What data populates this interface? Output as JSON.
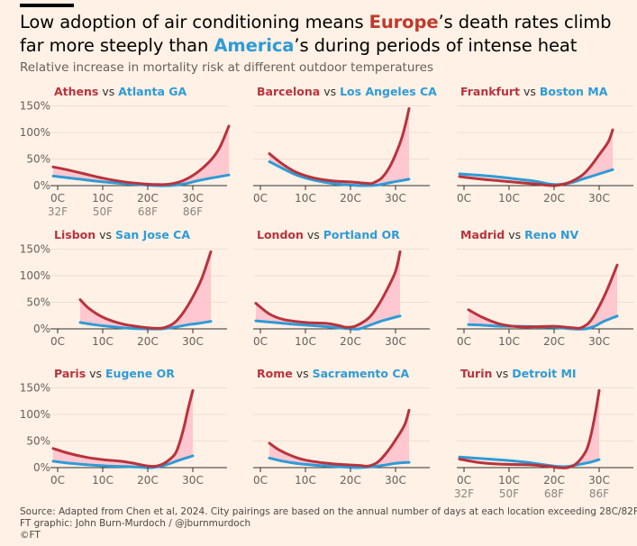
{
  "header": {
    "title_part1": "Low adoption of air conditioning means ",
    "title_eu": "Europe",
    "title_part2": "’s death rates climb",
    "title_part3": "far more steeply than ",
    "title_us": "America",
    "title_part4": "’s during periods of intense heat",
    "subtitle": "Relative increase in mortality risk at different outdoor temperatures"
  },
  "colors": {
    "europe": "#b8333d",
    "america": "#2e9bd6",
    "fill": "#ffc2cc",
    "background": "#fff1e5",
    "axis": "#33302e"
  },
  "axis": {
    "y_ticks": [
      "0%",
      "50%",
      "100%",
      "150%"
    ],
    "y_values": [
      0,
      50,
      100,
      150
    ],
    "x_ticks_c": [
      "0C",
      "10C",
      "20C",
      "30C"
    ],
    "x_ticks_f": [
      "32F",
      "50F",
      "68F",
      "86F"
    ],
    "x_values": [
      0,
      10,
      20,
      30
    ]
  },
  "chart_data": {
    "type": "line",
    "xlabel": "",
    "ylabel": "",
    "x_unit": "°C",
    "y_unit": "%",
    "xlim": [
      -1,
      38
    ],
    "ylim": [
      0,
      150
    ],
    "panels": [
      {
        "eu_city": "Athens",
        "us_city": "Atlanta GA",
        "europe": [
          [
            -1,
            35
          ],
          [
            2,
            30
          ],
          [
            6,
            22
          ],
          [
            10,
            14
          ],
          [
            14,
            8
          ],
          [
            18,
            4
          ],
          [
            22,
            2
          ],
          [
            25,
            3
          ],
          [
            28,
            10
          ],
          [
            31,
            25
          ],
          [
            34,
            48
          ],
          [
            36,
            72
          ],
          [
            38,
            112
          ]
        ],
        "america": [
          [
            -1,
            18
          ],
          [
            3,
            14
          ],
          [
            8,
            9
          ],
          [
            13,
            5
          ],
          [
            18,
            2
          ],
          [
            22,
            0
          ],
          [
            25,
            0
          ],
          [
            28,
            3
          ],
          [
            31,
            9
          ],
          [
            34,
            14
          ],
          [
            38,
            20
          ]
        ]
      },
      {
        "eu_city": "Barcelona",
        "us_city": "Los Angeles CA",
        "europe": [
          [
            2,
            60
          ],
          [
            5,
            40
          ],
          [
            8,
            25
          ],
          [
            12,
            14
          ],
          [
            16,
            9
          ],
          [
            20,
            7
          ],
          [
            24,
            4
          ],
          [
            25,
            5
          ],
          [
            27,
            15
          ],
          [
            29,
            40
          ],
          [
            31,
            80
          ],
          [
            32,
            108
          ],
          [
            33,
            145
          ]
        ],
        "america": [
          [
            2,
            45
          ],
          [
            5,
            32
          ],
          [
            8,
            20
          ],
          [
            12,
            10
          ],
          [
            16,
            4
          ],
          [
            20,
            1
          ],
          [
            23,
            0
          ],
          [
            26,
            1
          ],
          [
            29,
            6
          ],
          [
            31,
            9
          ],
          [
            33,
            12
          ]
        ]
      },
      {
        "eu_city": "Frankfurt",
        "us_city": "Boston MA",
        "europe": [
          [
            -1,
            17
          ],
          [
            4,
            12
          ],
          [
            8,
            9
          ],
          [
            12,
            6
          ],
          [
            16,
            3
          ],
          [
            20,
            0
          ],
          [
            23,
            5
          ],
          [
            26,
            18
          ],
          [
            28,
            35
          ],
          [
            30,
            58
          ],
          [
            32,
            82
          ],
          [
            33,
            105
          ]
        ],
        "america": [
          [
            -1,
            22
          ],
          [
            4,
            19
          ],
          [
            8,
            16
          ],
          [
            12,
            12
          ],
          [
            16,
            8
          ],
          [
            19,
            3
          ],
          [
            21,
            2
          ],
          [
            24,
            6
          ],
          [
            27,
            14
          ],
          [
            30,
            22
          ],
          [
            33,
            30
          ]
        ]
      },
      {
        "eu_city": "Lisbon",
        "us_city": "San Jose CA",
        "europe": [
          [
            5,
            55
          ],
          [
            7,
            38
          ],
          [
            10,
            22
          ],
          [
            14,
            10
          ],
          [
            18,
            4
          ],
          [
            22,
            1
          ],
          [
            24,
            3
          ],
          [
            26,
            12
          ],
          [
            28,
            32
          ],
          [
            30,
            60
          ],
          [
            32,
            95
          ],
          [
            34,
            145
          ]
        ],
        "america": [
          [
            5,
            12
          ],
          [
            8,
            8
          ],
          [
            12,
            4
          ],
          [
            16,
            1
          ],
          [
            20,
            0
          ],
          [
            23,
            0
          ],
          [
            26,
            3
          ],
          [
            29,
            8
          ],
          [
            31,
            10
          ],
          [
            34,
            14
          ]
        ]
      },
      {
        "eu_city": "London",
        "us_city": "Portland OR",
        "europe": [
          [
            -1,
            48
          ],
          [
            2,
            28
          ],
          [
            5,
            18
          ],
          [
            10,
            12
          ],
          [
            15,
            10
          ],
          [
            18,
            5
          ],
          [
            19,
            3
          ],
          [
            21,
            5
          ],
          [
            24,
            20
          ],
          [
            26,
            42
          ],
          [
            28,
            72
          ],
          [
            30,
            108
          ],
          [
            31,
            145
          ]
        ],
        "america": [
          [
            -1,
            15
          ],
          [
            3,
            12
          ],
          [
            7,
            9
          ],
          [
            12,
            6
          ],
          [
            16,
            3
          ],
          [
            20,
            0
          ],
          [
            22,
            0
          ],
          [
            24,
            6
          ],
          [
            27,
            15
          ],
          [
            30,
            22
          ],
          [
            31,
            24
          ]
        ]
      },
      {
        "eu_city": "Madrid",
        "us_city": "Reno NV",
        "europe": [
          [
            1,
            36
          ],
          [
            4,
            22
          ],
          [
            8,
            9
          ],
          [
            12,
            4
          ],
          [
            16,
            4
          ],
          [
            20,
            5
          ],
          [
            24,
            2
          ],
          [
            26,
            2
          ],
          [
            28,
            14
          ],
          [
            30,
            42
          ],
          [
            32,
            78
          ],
          [
            34,
            120
          ]
        ],
        "america": [
          [
            1,
            8
          ],
          [
            4,
            7
          ],
          [
            8,
            5
          ],
          [
            12,
            5
          ],
          [
            16,
            4
          ],
          [
            20,
            3
          ],
          [
            24,
            0
          ],
          [
            27,
            0
          ],
          [
            29,
            5
          ],
          [
            31,
            14
          ],
          [
            34,
            24
          ]
        ]
      },
      {
        "eu_city": "Paris",
        "us_city": "Eugene OR",
        "europe": [
          [
            -1,
            36
          ],
          [
            2,
            28
          ],
          [
            6,
            20
          ],
          [
            10,
            15
          ],
          [
            14,
            12
          ],
          [
            17,
            8
          ],
          [
            20,
            3
          ],
          [
            22,
            3
          ],
          [
            24,
            10
          ],
          [
            26,
            25
          ],
          [
            27,
            45
          ],
          [
            28,
            75
          ],
          [
            29,
            112
          ],
          [
            30,
            145
          ]
        ],
        "america": [
          [
            -1,
            12
          ],
          [
            3,
            8
          ],
          [
            7,
            5
          ],
          [
            11,
            3
          ],
          [
            15,
            2
          ],
          [
            18,
            1
          ],
          [
            21,
            0
          ],
          [
            24,
            5
          ],
          [
            27,
            14
          ],
          [
            30,
            22
          ]
        ]
      },
      {
        "eu_city": "Rome",
        "us_city": "Sacramento CA",
        "europe": [
          [
            2,
            46
          ],
          [
            4,
            34
          ],
          [
            7,
            22
          ],
          [
            10,
            14
          ],
          [
            14,
            9
          ],
          [
            18,
            6
          ],
          [
            22,
            4
          ],
          [
            24,
            3
          ],
          [
            26,
            10
          ],
          [
            28,
            28
          ],
          [
            30,
            52
          ],
          [
            32,
            80
          ],
          [
            33,
            108
          ]
        ],
        "america": [
          [
            2,
            18
          ],
          [
            5,
            12
          ],
          [
            9,
            7
          ],
          [
            13,
            4
          ],
          [
            17,
            2
          ],
          [
            21,
            0
          ],
          [
            24,
            1
          ],
          [
            27,
            4
          ],
          [
            30,
            8
          ],
          [
            33,
            10
          ]
        ]
      },
      {
        "eu_city": "Turin",
        "us_city": "Detroit MI",
        "europe": [
          [
            -1,
            16
          ],
          [
            3,
            10
          ],
          [
            7,
            7
          ],
          [
            11,
            6
          ],
          [
            15,
            5
          ],
          [
            19,
            2
          ],
          [
            21,
            0
          ],
          [
            23,
            0
          ],
          [
            25,
            8
          ],
          [
            27,
            30
          ],
          [
            28,
            55
          ],
          [
            29,
            95
          ],
          [
            30,
            145
          ]
        ],
        "america": [
          [
            -1,
            20
          ],
          [
            4,
            17
          ],
          [
            9,
            14
          ],
          [
            14,
            10
          ],
          [
            18,
            5
          ],
          [
            21,
            2
          ],
          [
            23,
            2
          ],
          [
            25,
            5
          ],
          [
            28,
            10
          ],
          [
            30,
            15
          ]
        ]
      }
    ]
  },
  "footer": {
    "source": "Source: Adapted from Chen et al, 2024. City pairings are based on the annual number of days at each location exceeding 28C/82F",
    "credit": "FT graphic: John Burn-Murdoch / @jburnmurdoch",
    "copyright": "©FT"
  }
}
